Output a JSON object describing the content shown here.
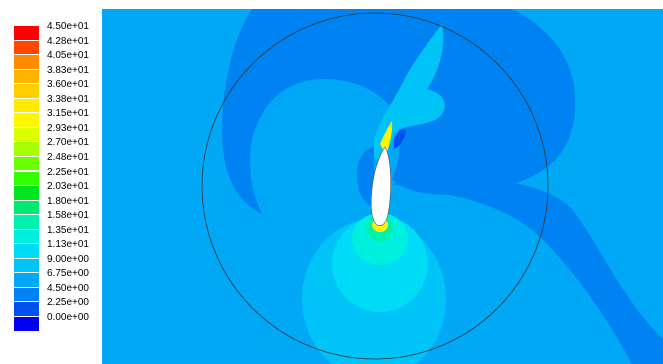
{
  "colorbar": {
    "labels": [
      "4.50e+01",
      "4.28e+01",
      "4.05e+01",
      "3.83e+01",
      "3.60e+01",
      "3.38e+01",
      "3.15e+01",
      "2.93e+01",
      "2.70e+01",
      "2.48e+01",
      "2.25e+01",
      "2.03e+01",
      "1.80e+01",
      "1.58e+01",
      "1.35e+01",
      "1.13e+01",
      "9.00e+00",
      "6.75e+00",
      "4.50e+00",
      "2.25e+00",
      "0.00e+00"
    ],
    "colors": [
      "#ff0000",
      "#ff4700",
      "#ff8c00",
      "#ffb300",
      "#ffd000",
      "#ffea00",
      "#fff700",
      "#d9ff00",
      "#a6ff00",
      "#6cff00",
      "#33ff00",
      "#00e61e",
      "#00e873",
      "#00f0b0",
      "#00f0e0",
      "#00dcf5",
      "#00c3f7",
      "#00a8f5",
      "#0083f2",
      "#0050ed",
      "#0000f0"
    ]
  },
  "plot_colors": {
    "background": "#00a8f5",
    "level_9": "#00c3f7",
    "level_11": "#00dcf5",
    "level_13": "#00f0e0",
    "level_16": "#00f0b0",
    "level_4": "#0083f2",
    "level_2": "#0050ed",
    "hot_yellow": "#fff700",
    "hot_orange": "#ff8c00",
    "airfoil": "#ffffff",
    "circle_line": "#333333"
  }
}
